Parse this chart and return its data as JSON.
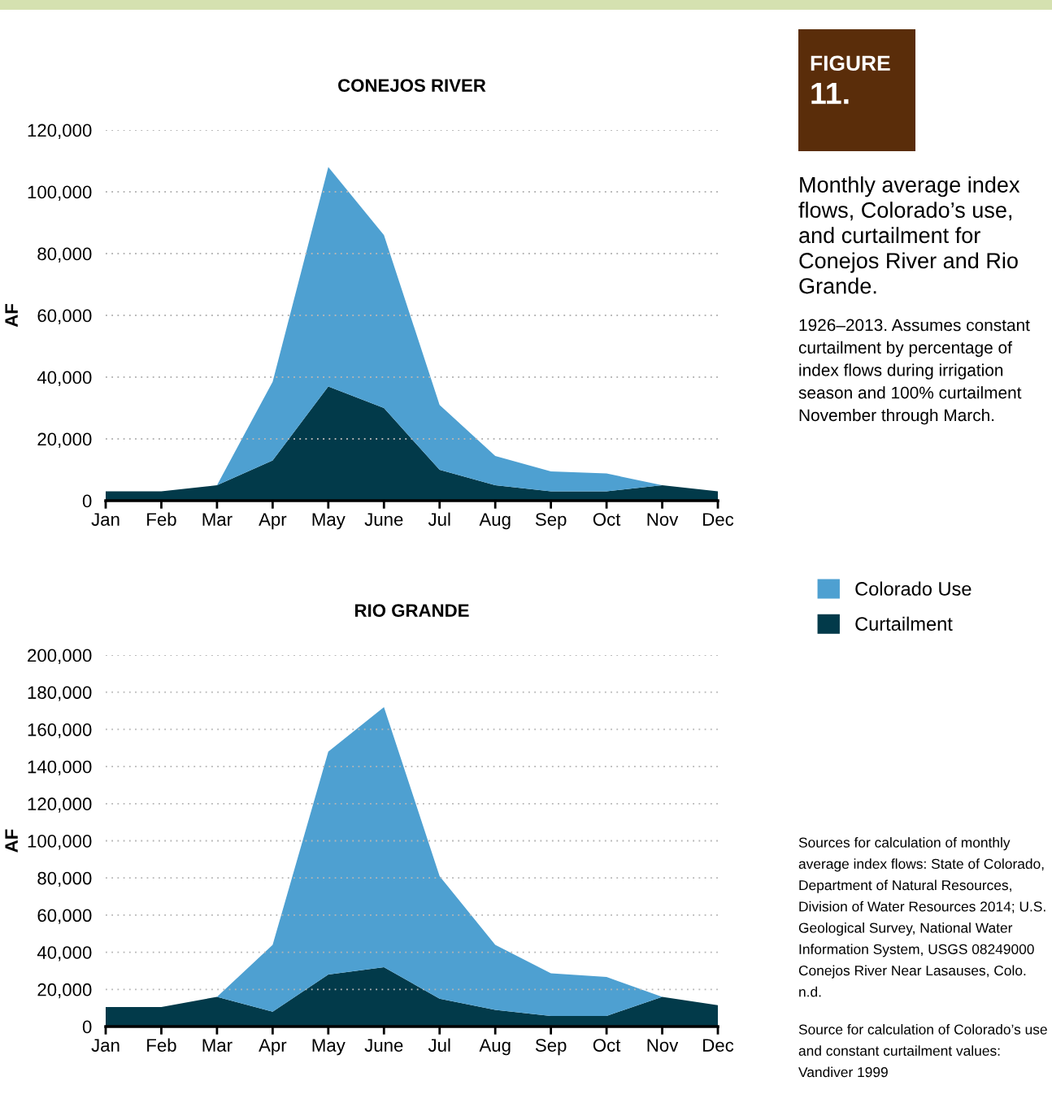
{
  "chart_data": [
    {
      "type": "area",
      "title": "CONEJOS RIVER",
      "ylabel": "AF",
      "stacked": true,
      "grid": "y",
      "legend": "right",
      "categories": [
        "Jan",
        "Feb",
        "Mar",
        "Apr",
        "May",
        "June",
        "Jul",
        "Aug",
        "Sep",
        "Oct",
        "Nov",
        "Dec"
      ],
      "series": [
        {
          "name": "Curtailment",
          "color": "#023a4a",
          "values": [
            3000,
            3000,
            5000,
            13000,
            37000,
            30000,
            10000,
            5000,
            3000,
            3000,
            5000,
            3000
          ]
        },
        {
          "name": "Colorado Use",
          "color": "#4ea0d1",
          "values": [
            0,
            0,
            0,
            25500,
            71000,
            56000,
            21000,
            9500,
            6500,
            5800,
            0,
            0
          ]
        }
      ],
      "ylim": [
        0,
        120000
      ],
      "yticks": [
        {
          "value": 0,
          "label": "0"
        },
        {
          "value": 20000,
          "label": "20,000"
        },
        {
          "value": 40000,
          "label": "40,000"
        },
        {
          "value": 60000,
          "label": "60,000"
        },
        {
          "value": 80000,
          "label": "80,000"
        },
        {
          "value": 100000,
          "label": "100,000"
        },
        {
          "value": 120000,
          "label": "120,000"
        }
      ],
      "annotations": [
        "FIGURE",
        "11.",
        "Monthly average index flows, Colorado’s use, and curtailment for Conejos River and Rio Grande.",
        "1926–2013. Assumes constant curtailment by percentage of index flows during irrigation season and 100% curtailment November through March."
      ]
    },
    {
      "type": "area",
      "title": "RIO GRANDE",
      "ylabel": "AF",
      "stacked": true,
      "grid": "y",
      "categories": [
        "Jan",
        "Feb",
        "Mar",
        "Apr",
        "May",
        "June",
        "Jul",
        "Aug",
        "Sep",
        "Oct",
        "Nov",
        "Dec"
      ],
      "series": [
        {
          "name": "Curtailment",
          "color": "#023a4a",
          "values": [
            10500,
            10500,
            16000,
            8000,
            28000,
            32000,
            15000,
            9000,
            5700,
            5700,
            16000,
            11500
          ]
        },
        {
          "name": "Colorado Use",
          "color": "#4ea0d1",
          "values": [
            0,
            0,
            0,
            36000,
            120000,
            140000,
            66000,
            35000,
            23000,
            21000,
            0,
            0
          ]
        }
      ],
      "ylim": [
        0,
        200000
      ],
      "yticks": [
        {
          "value": 0,
          "label": "0"
        },
        {
          "value": 20000,
          "label": "20,000"
        },
        {
          "value": 40000,
          "label": "40,000"
        },
        {
          "value": 60000,
          "label": "60,000"
        },
        {
          "value": 80000,
          "label": "80,000"
        },
        {
          "value": 100000,
          "label": "100,000"
        },
        {
          "value": 120000,
          "label": "120,000"
        },
        {
          "value": 140000,
          "label": "140,000"
        },
        {
          "value": 160000,
          "label": "160,000"
        },
        {
          "value": 180000,
          "label": "180,000"
        },
        {
          "value": 200000,
          "label": "200,000"
        }
      ],
      "annotations": [
        "Sources for calculation of monthly average index flows: State of Colorado, Department of Natural Resources, Division of Water Resources 2014; U.S. Geological Survey, National Water Information System, USGS 08249000 Conejos River Near Lasauses, Colo. n.d.",
        "Source for calculation of Colorado’s use and constant curtailment values: Vandiver 1999"
      ]
    }
  ]
}
